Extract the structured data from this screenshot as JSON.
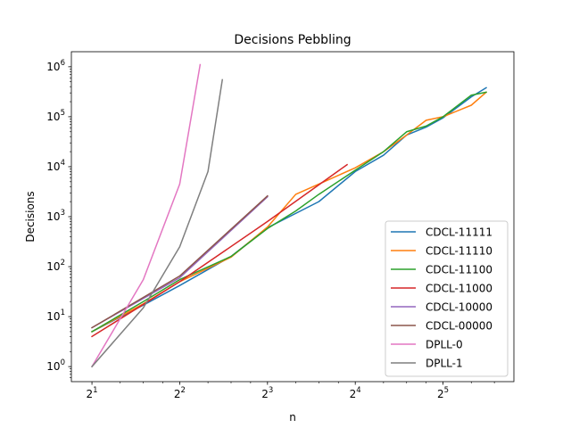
{
  "chart_data": {
    "type": "line",
    "title": "Decisions Pebbling",
    "xlabel": "n",
    "ylabel": "Decisions",
    "x_scale": "log2",
    "y_scale": "log10",
    "xlim": [
      1.7,
      56
    ],
    "ylim": [
      0.5,
      2000000
    ],
    "x_ticks": [
      {
        "base": "2",
        "exp": "1",
        "value": 2
      },
      {
        "base": "2",
        "exp": "2",
        "value": 4
      },
      {
        "base": "2",
        "exp": "3",
        "value": 8
      },
      {
        "base": "2",
        "exp": "4",
        "value": 16
      },
      {
        "base": "2",
        "exp": "5",
        "value": 32
      }
    ],
    "y_ticks": [
      {
        "base": "10",
        "exp": "0",
        "value": 1
      },
      {
        "base": "10",
        "exp": "1",
        "value": 10
      },
      {
        "base": "10",
        "exp": "2",
        "value": 100
      },
      {
        "base": "10",
        "exp": "3",
        "value": 1000
      },
      {
        "base": "10",
        "exp": "4",
        "value": 10000
      },
      {
        "base": "10",
        "exp": "5",
        "value": 100000
      },
      {
        "base": "10",
        "exp": "6",
        "value": 1000000
      }
    ],
    "grid": false,
    "legend_position": "lower-right",
    "series": [
      {
        "name": "CDCL-11111",
        "color": "#1f77b4",
        "x": [
          2,
          3,
          4,
          6,
          8,
          12,
          16,
          20,
          24,
          28,
          32,
          40,
          45
        ],
        "y": [
          5,
          17,
          42,
          160,
          600,
          2000,
          8000,
          17000,
          43000,
          62000,
          95000,
          250000,
          380000
        ]
      },
      {
        "name": "CDCL-11110",
        "color": "#ff7f0e",
        "x": [
          2,
          3,
          4,
          6,
          8,
          10,
          12,
          16,
          20,
          24,
          28,
          32,
          40,
          45
        ],
        "y": [
          5,
          18,
          50,
          155,
          620,
          2800,
          4500,
          9500,
          20000,
          43000,
          85000,
          100000,
          170000,
          310000
        ]
      },
      {
        "name": "CDCL-11100",
        "color": "#2ca02c",
        "x": [
          2,
          3,
          4,
          6,
          8,
          10,
          12,
          16,
          20,
          24,
          28,
          32,
          40,
          45
        ],
        "y": [
          5,
          20,
          55,
          160,
          580,
          1300,
          2800,
          8500,
          20000,
          50000,
          65000,
          100000,
          270000,
          310000
        ]
      },
      {
        "name": "CDCL-11000",
        "color": "#d62728",
        "x": [
          2,
          4,
          8,
          15
        ],
        "y": [
          4,
          50,
          800,
          11000
        ]
      },
      {
        "name": "CDCL-10000",
        "color": "#9467bd",
        "x": [
          2,
          4,
          8
        ],
        "y": [
          6,
          60,
          2500
        ]
      },
      {
        "name": "CDCL-00000",
        "color": "#8c564b",
        "x": [
          2,
          4,
          8
        ],
        "y": [
          6,
          65,
          2600
        ]
      },
      {
        "name": "DPLL-0",
        "color": "#e377c2",
        "x": [
          2,
          3,
          4,
          4.7
        ],
        "y": [
          1,
          55,
          4500,
          1100000
        ]
      },
      {
        "name": "DPLL-1",
        "color": "#7f7f7f",
        "x": [
          2,
          3,
          4,
          5,
          5.6
        ],
        "y": [
          1,
          15,
          250,
          8000,
          550000
        ]
      }
    ]
  }
}
